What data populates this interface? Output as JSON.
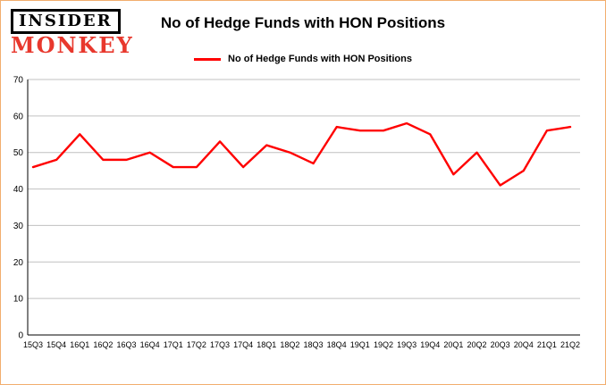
{
  "brand": {
    "line1": "INSIDER",
    "line2": "MONKEY"
  },
  "header": {
    "title": "No of Hedge Funds with HON Positions"
  },
  "legend": {
    "label": "No of Hedge Funds with HON Positions",
    "color": "#ff0000"
  },
  "colors": {
    "line": "#ff0000",
    "grid": "#c0c0c0",
    "axis": "#000000",
    "frame_border": "#f2ae6e",
    "brand_red": "#e8382d"
  },
  "chart_data": {
    "type": "line",
    "title": "No of Hedge Funds with HON Positions",
    "categories": [
      "15Q3",
      "15Q4",
      "16Q1",
      "16Q2",
      "16Q3",
      "16Q4",
      "17Q1",
      "17Q2",
      "17Q3",
      "17Q4",
      "18Q1",
      "18Q2",
      "18Q3",
      "18Q4",
      "19Q1",
      "19Q2",
      "19Q3",
      "19Q4",
      "20Q1",
      "20Q2",
      "20Q3",
      "20Q4",
      "21Q1",
      "21Q2"
    ],
    "series": [
      {
        "name": "No of Hedge Funds with HON Positions",
        "color": "#ff0000",
        "values": [
          46,
          48,
          55,
          48,
          48,
          50,
          46,
          46,
          53,
          46,
          52,
          50,
          47,
          57,
          56,
          56,
          58,
          55,
          44,
          50,
          41,
          45,
          56,
          57
        ]
      }
    ],
    "xlabel": "",
    "ylabel": "",
    "ylim": [
      0,
      70
    ],
    "yticks": [
      0,
      10,
      20,
      30,
      40,
      50,
      60,
      70
    ],
    "grid": true,
    "legend_position": "top"
  }
}
